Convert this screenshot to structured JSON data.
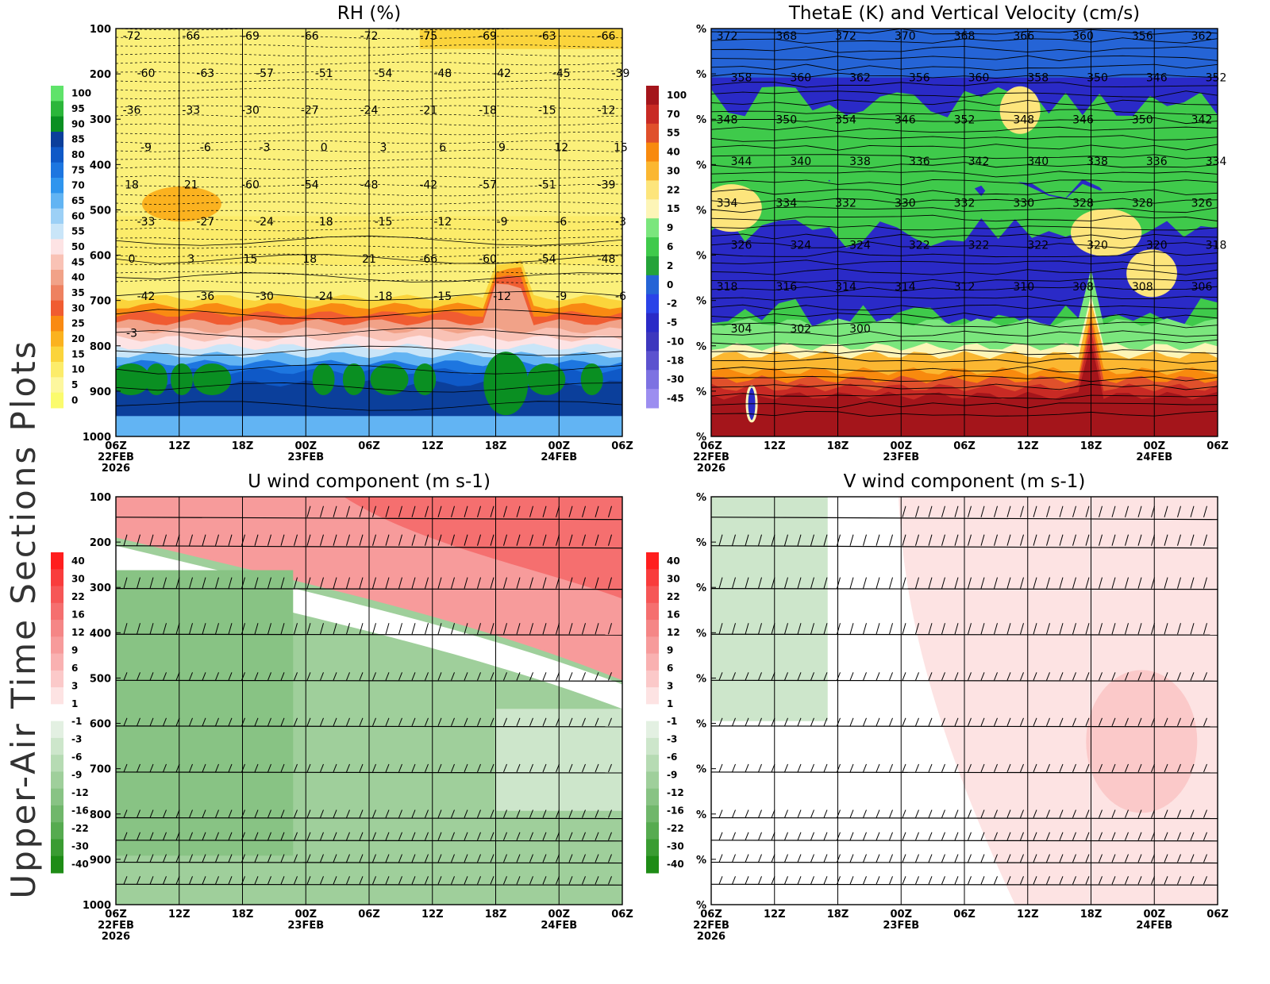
{
  "page": {
    "side_title": "Upper-Air Time Sections Plots"
  },
  "time_axis": {
    "ticks": [
      "06Z",
      "12Z",
      "18Z",
      "00Z",
      "06Z",
      "12Z",
      "18Z",
      "00Z",
      "06Z"
    ],
    "date_labels": [
      {
        "index": 0,
        "lines": [
          "22FEB",
          "2026"
        ]
      },
      {
        "index": 3,
        "lines": [
          "23FEB"
        ]
      },
      {
        "index": 7,
        "lines": [
          "24FEB"
        ]
      }
    ]
  },
  "chart_data": [
    {
      "id": "rh",
      "type": "heatmap",
      "title": "RH (%)",
      "xlabel": "",
      "ylabel": "",
      "x": [
        "06Z 22FEB 2026",
        "12Z",
        "18Z",
        "00Z 23FEB",
        "06Z",
        "12Z",
        "18Z",
        "00Z 24FEB",
        "06Z"
      ],
      "y_ticks": [
        "100",
        "200",
        "300",
        "400",
        "500",
        "600",
        "700",
        "800",
        "900",
        "1000"
      ],
      "ylim": [
        1000,
        100
      ],
      "colorbar": {
        "ticks": [
          "100",
          "95",
          "90",
          "85",
          "80",
          "75",
          "70",
          "65",
          "60",
          "55",
          "50",
          "45",
          "40",
          "35",
          "30",
          "25",
          "20",
          "15",
          "10",
          "5",
          "0"
        ],
        "colors": [
          "#5fe36a",
          "#2bb63a",
          "#0a8f22",
          "#0b3f9b",
          "#0f59c7",
          "#1d76e0",
          "#2f95ee",
          "#62b4f3",
          "#9cd0f6",
          "#c9e5f8",
          "#fde3e4",
          "#f9c2b5",
          "#f1a288",
          "#ee8160",
          "#f05c31",
          "#f98a12",
          "#fbb21f",
          "#fbd43b",
          "#fcec6a",
          "#fdf79e",
          "#fbfb6d"
        ]
      },
      "contour_labels": [
        "-72",
        "-66",
        "-69",
        "-66",
        "-72",
        "-75",
        "-69",
        "-63",
        "-66",
        "-60",
        "-63",
        "-57",
        "-51",
        "-54",
        "-48",
        "-42",
        "-45",
        "-39",
        "-36",
        "-33",
        "-30",
        "-27",
        "-24",
        "-21",
        "-18",
        "-15",
        "-12",
        "-9",
        "-6",
        "-3",
        "0",
        "3",
        "6",
        "9",
        "12",
        "15",
        "18",
        "21",
        "-60",
        "-54",
        "-48",
        "-42",
        "-57",
        "-51",
        "-39",
        "-33",
        "-27",
        "-24",
        "-18",
        "-15",
        "-12",
        "-9",
        "-6",
        "-3",
        "0",
        "3",
        "15",
        "18",
        "21",
        "-66",
        "-60",
        "-54",
        "-48",
        "-42",
        "-36",
        "-30",
        "-24",
        "-18",
        "-15",
        "-12",
        "-9",
        "-6",
        "-3"
      ]
    },
    {
      "id": "thetae",
      "type": "heatmap",
      "title": "ThetaE (K) and Vertical Velocity (cm/s)",
      "xlabel": "",
      "ylabel": "",
      "x": [
        "06Z 22FEB 2026",
        "12Z",
        "18Z",
        "00Z 23FEB",
        "06Z",
        "12Z",
        "18Z",
        "00Z 24FEB",
        "06Z"
      ],
      "y_ticks": [
        "%",
        "%",
        "%",
        "%",
        "%",
        "%",
        "%",
        "%",
        "%",
        "%"
      ],
      "colorbar": {
        "ticks": [
          "100",
          "70",
          "55",
          "40",
          "30",
          "22",
          "15",
          "9",
          "6",
          "2",
          "0",
          "-2",
          "-5",
          "-10",
          "-18",
          "-30",
          "-45"
        ],
        "colors": [
          "#a4151b",
          "#c82a24",
          "#e0502b",
          "#f88a0e",
          "#fbb731",
          "#fde57c",
          "#fdf5b7",
          "#7be67d",
          "#3fca4b",
          "#24a339",
          "#2564d6",
          "#2a43e8",
          "#2a2ac7",
          "#3d37be",
          "#5c52cf",
          "#7d72e2",
          "#9c8ef0"
        ]
      },
      "contour_labels": [
        "372",
        "368",
        "372",
        "370",
        "368",
        "366",
        "360",
        "356",
        "362",
        "358",
        "360",
        "362",
        "356",
        "360",
        "358",
        "350",
        "346",
        "352",
        "348",
        "350",
        "354",
        "346",
        "352",
        "348",
        "346",
        "350",
        "342",
        "344",
        "340",
        "338",
        "336",
        "342",
        "340",
        "338",
        "336",
        "334",
        "334",
        "334",
        "332",
        "330",
        "332",
        "330",
        "328",
        "328",
        "326",
        "326",
        "324",
        "324",
        "322",
        "322",
        "322",
        "320",
        "320",
        "318",
        "318",
        "316",
        "314",
        "314",
        "312",
        "310",
        "308",
        "308",
        "306",
        "304",
        "302",
        "300"
      ]
    },
    {
      "id": "u_wind",
      "type": "heatmap",
      "title": "U wind component (m s-1)",
      "xlabel": "",
      "ylabel": "",
      "x": [
        "06Z 22FEB 2026",
        "12Z",
        "18Z",
        "00Z 23FEB",
        "06Z",
        "12Z",
        "18Z",
        "00Z 24FEB",
        "06Z"
      ],
      "y_ticks": [
        "100",
        "200",
        "300",
        "400",
        "500",
        "600",
        "700",
        "800",
        "900",
        "1000"
      ],
      "ylim": [
        1000,
        100
      ],
      "colorbar": {
        "ticks": [
          "40",
          "30",
          "22",
          "16",
          "12",
          "9",
          "6",
          "3",
          "1",
          "-1",
          "-3",
          "-6",
          "-9",
          "-12",
          "-16",
          "-22",
          "-30",
          "-40"
        ],
        "colors": [
          "#ff1e1e",
          "#f93c3c",
          "#f65656",
          "#f56f6f",
          "#f58686",
          "#f79b9b",
          "#f9b1b1",
          "#fbc9c9",
          "#fde3e3",
          "#ffffff",
          "#e3f0e2",
          "#cde6cb",
          "#b6dbb3",
          "#9fcf9b",
          "#88c384",
          "#70b76b",
          "#56ab50",
          "#3a9c32",
          "#1e8c16"
        ]
      },
      "barb_levels": [
        "150",
        "200",
        "300",
        "400",
        "500",
        "600",
        "700",
        "850",
        "900",
        "950",
        "1000"
      ]
    },
    {
      "id": "v_wind",
      "type": "heatmap",
      "title": "V wind component (m s-1)",
      "xlabel": "",
      "ylabel": "",
      "x": [
        "06Z 22FEB 2026",
        "12Z",
        "18Z",
        "00Z 23FEB",
        "06Z",
        "12Z",
        "18Z",
        "00Z 24FEB",
        "06Z"
      ],
      "y_ticks": [
        "%",
        "%",
        "%",
        "%",
        "%",
        "%",
        "%",
        "%",
        "%",
        "%"
      ],
      "colorbar": {
        "ticks": [
          "40",
          "30",
          "22",
          "16",
          "12",
          "9",
          "6",
          "3",
          "1",
          "-1",
          "-3",
          "-6",
          "-9",
          "-12",
          "-16",
          "-22",
          "-30",
          "-40"
        ],
        "colors": [
          "#ff1e1e",
          "#f93c3c",
          "#f65656",
          "#f56f6f",
          "#f58686",
          "#f79b9b",
          "#f9b1b1",
          "#fbc9c9",
          "#fde3e3",
          "#ffffff",
          "#e3f0e2",
          "#cde6cb",
          "#b6dbb3",
          "#9fcf9b",
          "#88c384",
          "#70b76b",
          "#56ab50",
          "#3a9c32",
          "#1e8c16"
        ]
      },
      "barb_levels": [
        "150",
        "200",
        "300",
        "400",
        "500",
        "600",
        "700",
        "850",
        "900",
        "950",
        "1000"
      ]
    }
  ]
}
